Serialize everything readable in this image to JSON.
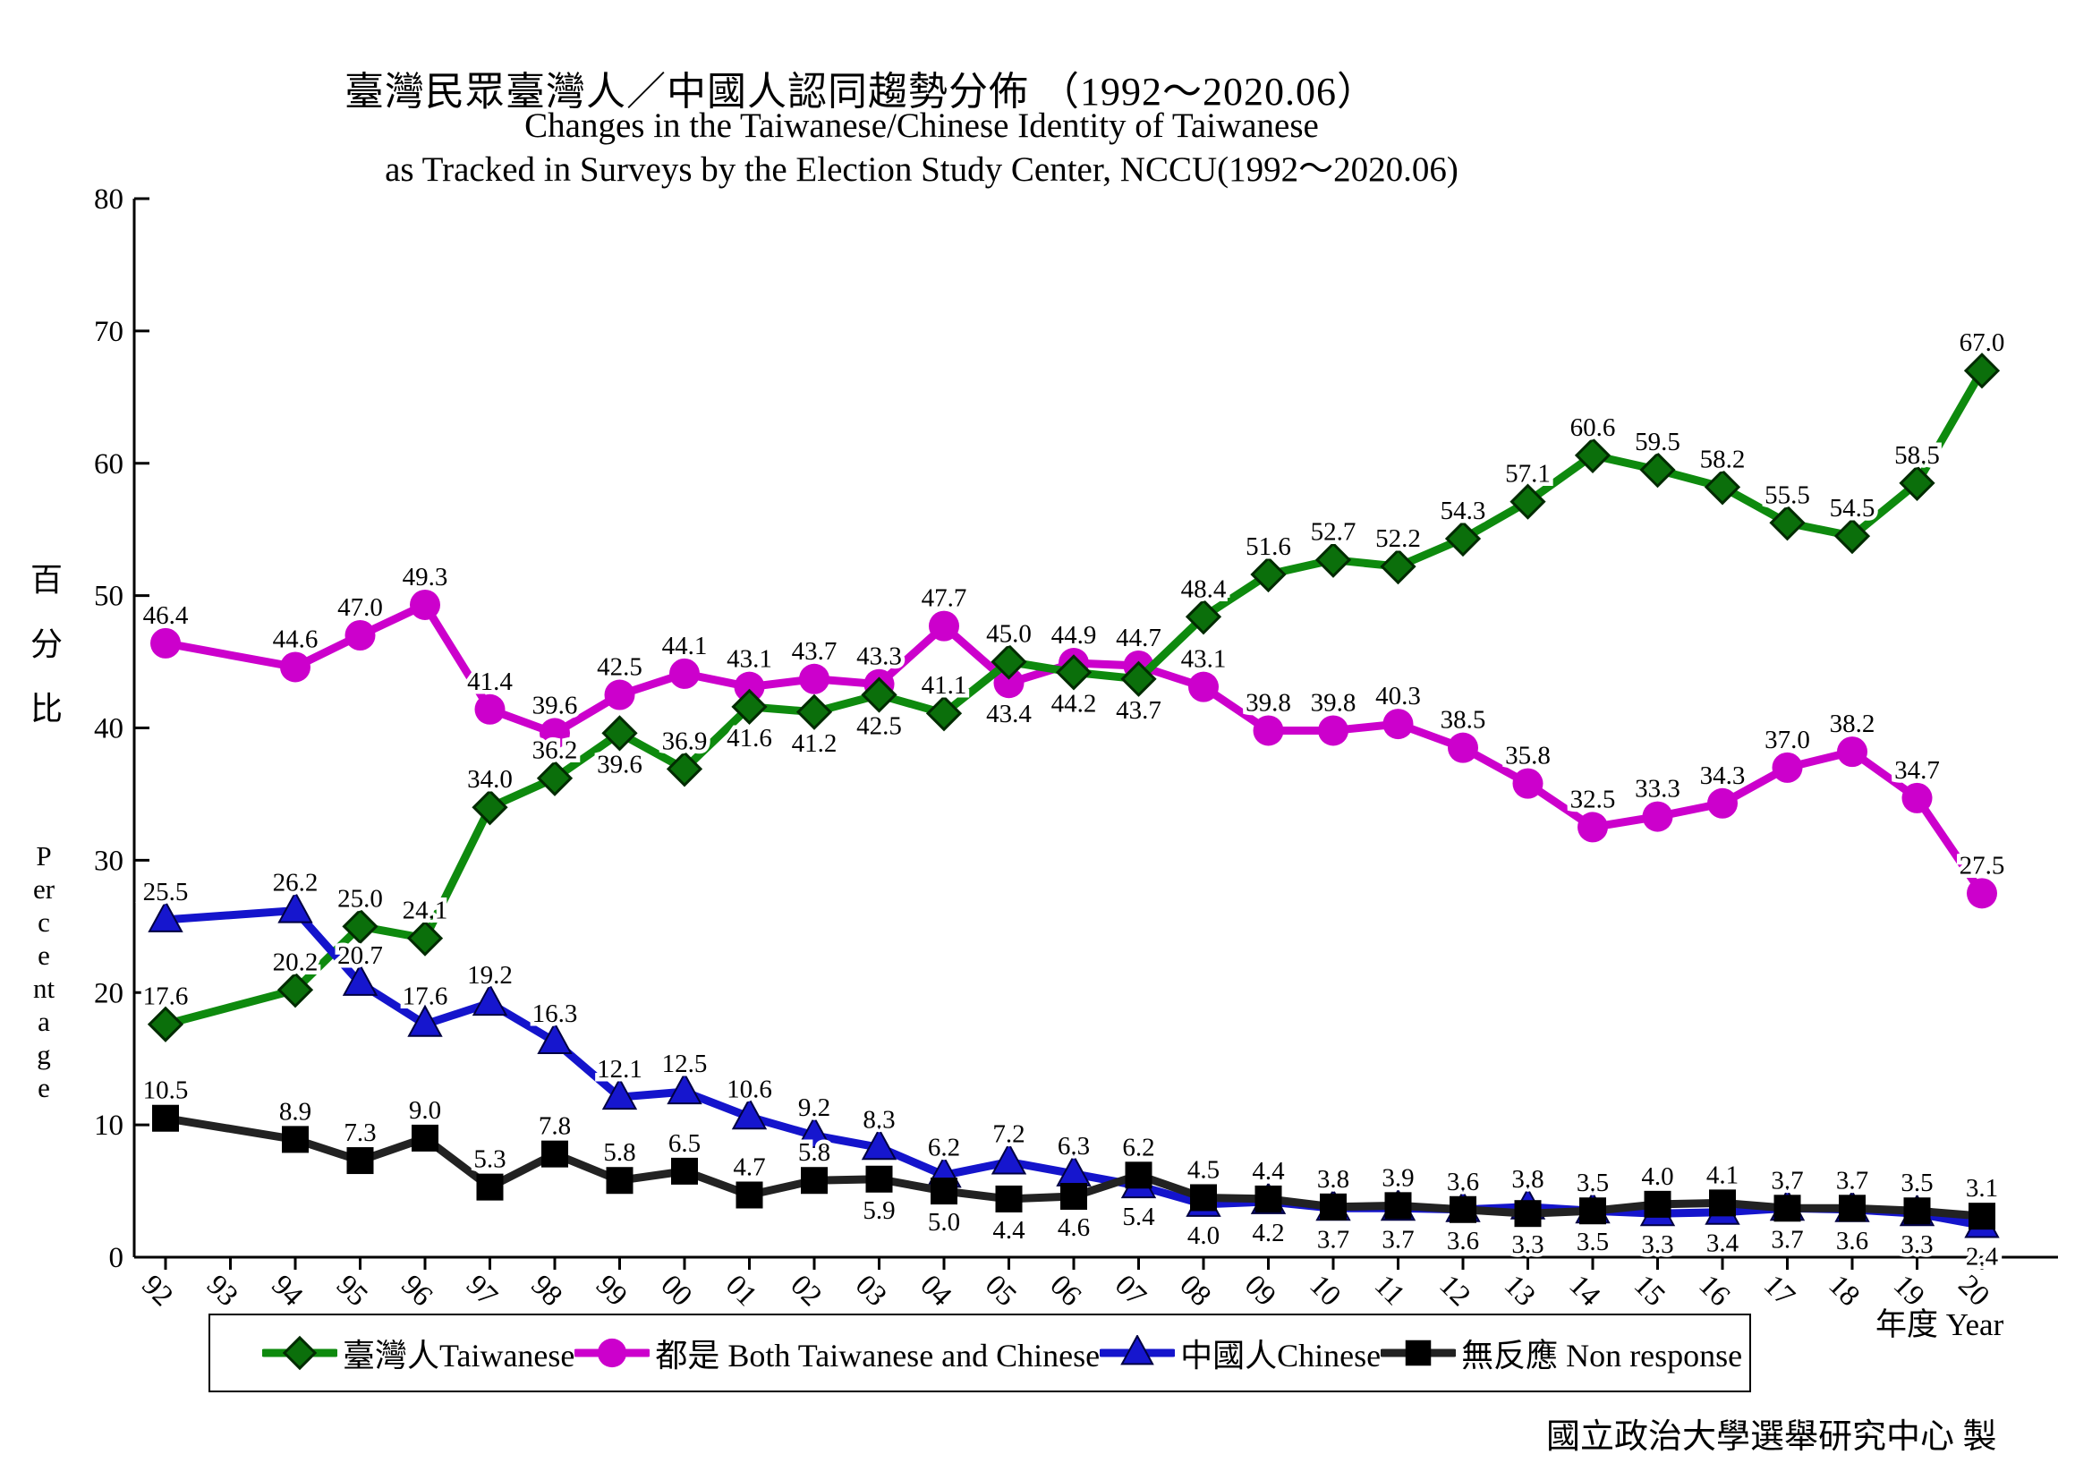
{
  "titles": {
    "zh": "臺灣民眾臺灣人／中國人認同趨勢分佈 （1992～2020.06）",
    "en_line1": "Changes in the Taiwanese/Chinese Identity of Taiwanese",
    "en_line2": "as Tracked in Surveys by the Election Study Center, NCCU(1992～2020.06)"
  },
  "y_axis": {
    "label_zh": "百分比",
    "label_en": "Percentage",
    "tick_labels": [
      "0",
      "10",
      "20",
      "30",
      "40",
      "50",
      "60",
      "70",
      "80"
    ]
  },
  "x_axis": {
    "title": "年度 Year"
  },
  "legend": {
    "items": [
      {
        "label": "臺灣人Taiwanese"
      },
      {
        "label": "都是 Both Taiwanese and Chinese"
      },
      {
        "label": "中國人Chinese"
      },
      {
        "label": "無反應 Non response"
      }
    ]
  },
  "credit": "國立政治大學選舉研究中心 製",
  "chart_data": {
    "type": "line",
    "x": [
      "92",
      "93",
      "94",
      "95",
      "96",
      "97",
      "98",
      "99",
      "00",
      "01",
      "02",
      "03",
      "04",
      "05",
      "06",
      "07",
      "08",
      "09",
      "10",
      "11",
      "12",
      "13",
      "14",
      "15",
      "16",
      "17",
      "18",
      "19",
      "20"
    ],
    "missing_x": [
      "93"
    ],
    "ylim": [
      0,
      80
    ],
    "grid": false,
    "legend_position": "bottom",
    "title": "臺灣民眾臺灣人／中國人認同趨勢分佈 （1992～2020.06）",
    "ylabel": "百分比 Percentage",
    "xlabel": "年度 Year",
    "series": [
      {
        "name": "臺灣人Taiwanese",
        "marker": "diamond",
        "color": "#0e8a0e",
        "marker_fill": "#0b6f0b",
        "values": [
          17.6,
          null,
          20.2,
          25.0,
          24.1,
          34.0,
          36.2,
          39.6,
          36.9,
          41.6,
          41.2,
          42.5,
          41.1,
          45.0,
          44.2,
          43.7,
          48.4,
          51.6,
          52.7,
          52.2,
          54.3,
          57.1,
          60.6,
          59.5,
          58.2,
          55.5,
          54.5,
          58.5,
          67.0
        ],
        "label_side": [
          "a",
          "",
          "a",
          "a",
          "a",
          "a",
          "a",
          "b",
          "a",
          "b",
          "b",
          "b",
          "a",
          "a",
          "b",
          "b",
          "a",
          "a",
          "a",
          "a",
          "a",
          "a",
          "a",
          "a",
          "a",
          "a",
          "a",
          "a",
          "a"
        ]
      },
      {
        "name": "都是 Both Taiwanese and Chinese",
        "marker": "circle",
        "color": "#cc00cc",
        "marker_fill": "#cc00cc",
        "values": [
          46.4,
          null,
          44.6,
          47.0,
          49.3,
          41.4,
          39.6,
          42.5,
          44.1,
          43.1,
          43.7,
          43.3,
          47.7,
          43.4,
          44.9,
          44.7,
          43.1,
          39.8,
          39.8,
          40.3,
          38.5,
          35.8,
          32.5,
          33.3,
          34.3,
          37.0,
          38.2,
          34.7,
          27.5
        ],
        "label_side": [
          "a",
          "",
          "a",
          "a",
          "a",
          "a",
          "a",
          "a",
          "a",
          "a",
          "a",
          "a",
          "a",
          "b",
          "a",
          "a",
          "a",
          "a",
          "a",
          "a",
          "a",
          "a",
          "a",
          "a",
          "a",
          "a",
          "a",
          "a",
          "a"
        ]
      },
      {
        "name": "中國人Chinese",
        "marker": "triangle",
        "color": "#1414cc",
        "marker_fill": "#1616ce",
        "values": [
          25.5,
          null,
          26.2,
          20.7,
          17.6,
          19.2,
          16.3,
          12.1,
          12.5,
          10.6,
          9.2,
          8.3,
          6.2,
          7.2,
          6.3,
          5.4,
          4.0,
          4.2,
          3.7,
          3.7,
          3.6,
          3.8,
          3.5,
          3.3,
          3.4,
          3.7,
          3.6,
          3.3,
          2.4
        ],
        "label_side": [
          "a",
          "",
          "a",
          "a",
          "a",
          "a",
          "a",
          "a",
          "a",
          "a",
          "a",
          "a",
          "a",
          "a",
          "a",
          "b",
          "b",
          "b",
          "b",
          "b",
          "b",
          "a",
          "b",
          "b",
          "b",
          "b",
          "b",
          "b",
          "b"
        ]
      },
      {
        "name": "無反應 Non response",
        "marker": "square",
        "color": "#222222",
        "marker_fill": "#000000",
        "values": [
          10.5,
          null,
          8.9,
          7.3,
          9.0,
          5.3,
          7.8,
          5.8,
          6.5,
          4.7,
          5.8,
          5.9,
          5.0,
          4.4,
          4.6,
          6.2,
          4.5,
          4.4,
          3.8,
          3.9,
          3.6,
          3.3,
          3.5,
          4.0,
          4.1,
          3.7,
          3.7,
          3.5,
          3.1
        ],
        "label_side": [
          "a",
          "",
          "a",
          "a",
          "a",
          "a",
          "a",
          "a",
          "a",
          "a",
          "a",
          "b",
          "b",
          "b",
          "b",
          "a",
          "a",
          "a",
          "a",
          "a",
          "a",
          "b",
          "a",
          "a",
          "a",
          "a",
          "a",
          "a",
          "a"
        ]
      }
    ]
  }
}
